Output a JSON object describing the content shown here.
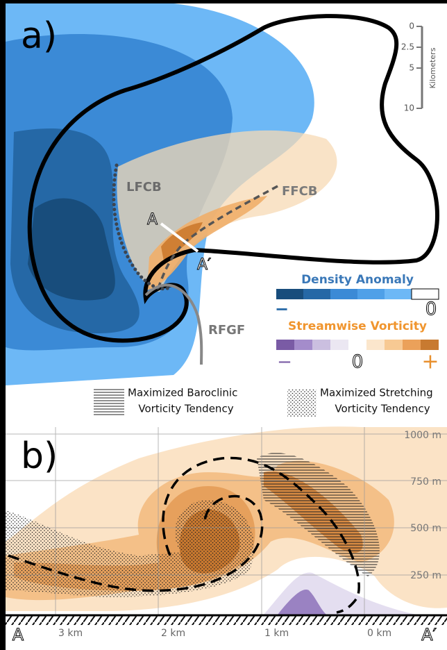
{
  "panel_a": {
    "label": "a)",
    "scale": {
      "ticks": [
        "0",
        "2.5",
        "5",
        "10"
      ],
      "unit": "Kilometers"
    },
    "annotations": {
      "lfcb": "LFCB",
      "ffcb": "FFCB",
      "a": "A",
      "a_prime": "A′",
      "rfgf": "RFGF"
    },
    "legend": {
      "density": {
        "title": "Density Anomaly",
        "low": "−",
        "high": "0"
      },
      "vorticity": {
        "title": "Streamwise Vorticity",
        "low": "−",
        "mid": "0",
        "high": "+"
      },
      "baroclinic": [
        "Maximized Baroclinic",
        "Vorticity Tendency"
      ],
      "stretching": [
        "Maximized Stretching",
        "Vorticity Tendency"
      ]
    }
  },
  "panel_b": {
    "label": "b)",
    "heights": [
      "1000 m",
      "750 m",
      "500 m",
      "250 m"
    ],
    "distances": [
      "3 km",
      "2 km",
      "1 km",
      "0 km"
    ],
    "start": "A",
    "end": "A′"
  }
}
